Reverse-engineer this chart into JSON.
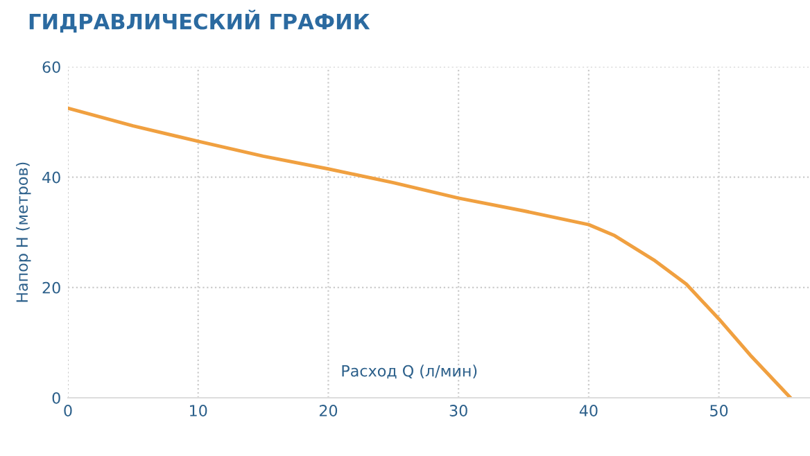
{
  "chart_data": {
    "type": "line",
    "title": "ГИДРАВЛИЧЕСКИЙ ГРАФИК",
    "xlabel": "Расход Q (л/мин)",
    "ylabel": "Напор H (метров)",
    "series": [
      {
        "color": "#f0a040",
        "x": [
          0,
          5,
          10,
          15,
          20,
          25,
          30,
          35,
          40,
          42,
          45,
          47.5,
          50,
          52.5,
          55.5
        ],
        "values": [
          52.5,
          49.3,
          46.5,
          43.8,
          41.5,
          39,
          36.2,
          33.9,
          31.4,
          29.4,
          25,
          20.6,
          14.3,
          7.5,
          0
        ]
      }
    ],
    "xlim": [
      0,
      57
    ],
    "xticks": [
      0,
      10,
      20,
      30,
      40,
      50
    ],
    "ylim": [
      0,
      60
    ],
    "yticks": [
      0,
      20,
      40,
      60
    ],
    "grid": true,
    "legend": false,
    "marker": "none",
    "line_style": "solid"
  }
}
